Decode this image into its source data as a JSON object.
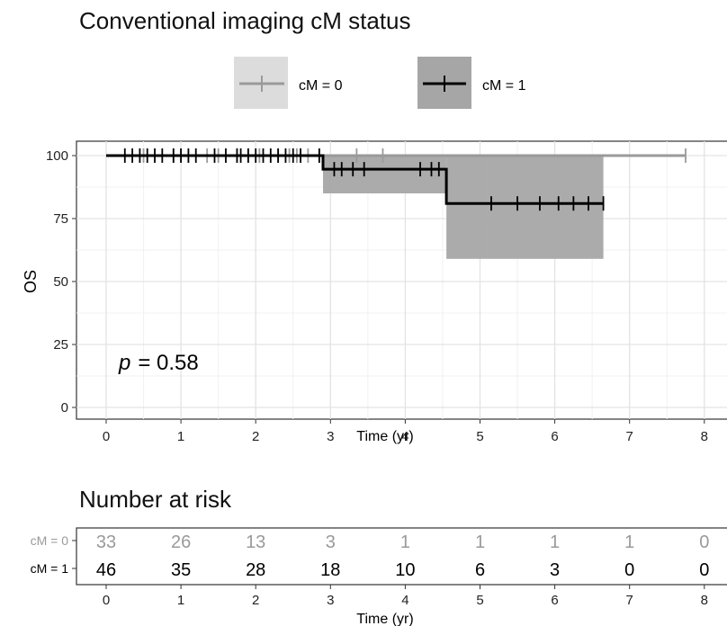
{
  "chart_data": {
    "type": "line",
    "subtype": "kaplan-meier",
    "title": "Conventional imaging cM status",
    "xlabel": "Time (yr)",
    "ylabel": "OS",
    "xlim": [
      0,
      8
    ],
    "ylim": [
      0,
      100
    ],
    "x_ticks": [
      "0",
      "1",
      "2",
      "3",
      "4",
      "5",
      "6",
      "7",
      "8"
    ],
    "y_ticks": [
      "0",
      "25",
      "50",
      "75",
      "100"
    ],
    "annotation": {
      "p_label": "p",
      "p_value": "= 0.58"
    },
    "legend": [
      {
        "label": "cM = 0",
        "color": "#9a9a9a",
        "band_color": "#dcdcdc"
      },
      {
        "label": "cM = 1",
        "color": "#000000",
        "band_color": "#a6a6a6"
      }
    ],
    "series": [
      {
        "name": "cM = 0",
        "color": "#9a9a9a",
        "steps": [
          [
            0,
            100
          ],
          [
            7.75,
            100
          ]
        ],
        "censors": [
          0.5,
          0.9,
          1.0,
          1.35,
          1.5,
          1.75,
          2.05,
          2.3,
          2.45,
          2.55,
          2.7,
          2.85,
          3.35,
          3.7,
          7.75
        ],
        "ci": []
      },
      {
        "name": "cM = 1",
        "color": "#000000",
        "steps": [
          [
            0,
            100
          ],
          [
            2.9,
            100
          ],
          [
            2.9,
            94.6
          ],
          [
            4.55,
            94.6
          ],
          [
            4.55,
            81
          ],
          [
            6.65,
            81
          ]
        ],
        "censors": [
          0.25,
          0.35,
          0.45,
          0.55,
          0.65,
          0.75,
          0.9,
          1.0,
          1.1,
          1.2,
          1.45,
          1.6,
          1.75,
          1.8,
          1.9,
          2.0,
          2.1,
          2.2,
          2.3,
          2.4,
          2.5,
          2.6,
          2.85,
          3.05,
          3.15,
          3.3,
          3.45,
          4.2,
          4.35,
          4.45,
          5.15,
          5.5,
          5.8,
          6.05,
          6.25,
          6.45,
          6.65
        ],
        "ci": [
          {
            "x0": 2.9,
            "x1": 4.55,
            "lower": 85,
            "upper": 100
          },
          {
            "x0": 4.55,
            "x1": 6.65,
            "lower": 59,
            "upper": 100
          }
        ]
      }
    ],
    "risk_table": {
      "title": "Number at risk",
      "xlabel": "Time (yr)",
      "rows": [
        {
          "label": "cM = 0",
          "color": "#9a9a9a",
          "values": [
            "33",
            "26",
            "13",
            "3",
            "1",
            "1",
            "1",
            "1",
            "0"
          ]
        },
        {
          "label": "cM = 1",
          "color": "#000000",
          "values": [
            "46",
            "35",
            "28",
            "18",
            "10",
            "6",
            "3",
            "0",
            "0"
          ]
        }
      ]
    }
  }
}
